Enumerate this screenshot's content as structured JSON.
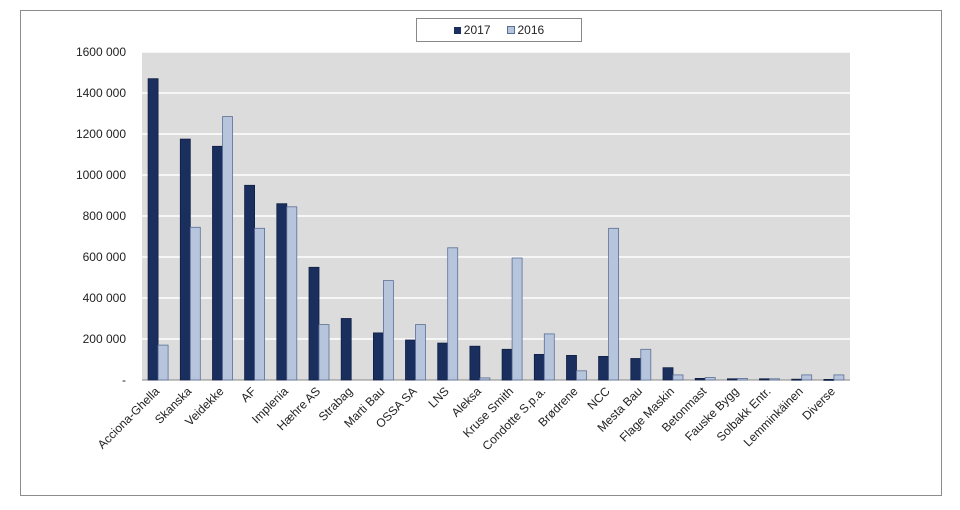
{
  "chart_data": {
    "type": "bar",
    "categories": [
      "Acciona-Ghella",
      "Skanska",
      "Veidekke",
      "AF",
      "Implenia",
      "Hæhre AS",
      "Strabag",
      "Marti Bau",
      "OSSA SA",
      "LNS",
      "Aleksa",
      "Kruse Smith",
      "Condotte S.p.a.",
      "Brødrene",
      "NCC",
      "Mesta Bau",
      "Flage Maskin",
      "Betonmast",
      "Fauske Bygg",
      "Solbakk Entr.",
      "Lemminkäinen",
      "Diverse"
    ],
    "series": [
      {
        "name": "2017",
        "values": [
          1470000,
          1175000,
          1140000,
          950000,
          860000,
          550000,
          300000,
          230000,
          195000,
          180000,
          165000,
          150000,
          125000,
          120000,
          115000,
          105000,
          60000,
          8000,
          6000,
          6000,
          4000,
          3000
        ]
      },
      {
        "name": "2016",
        "values": [
          170000,
          745000,
          1285000,
          740000,
          845000,
          270000,
          0,
          485000,
          270000,
          645000,
          10000,
          595000,
          225000,
          45000,
          740000,
          150000,
          25000,
          12000,
          8000,
          6000,
          25000,
          25000
        ]
      }
    ],
    "y_ticks": [
      "1600 000",
      "1400 000",
      "1200 000",
      "1000 000",
      "800 000",
      "600 000",
      "400 000",
      "200 000",
      "-"
    ],
    "ylim": [
      0,
      1600000
    ],
    "grid": true,
    "legend_position": "top-center",
    "colors": {
      "2017": "#1b2f5e",
      "2016": "#b7c5dc",
      "plot_bg": "#dcdcdc",
      "grid": "#ffffff"
    }
  }
}
